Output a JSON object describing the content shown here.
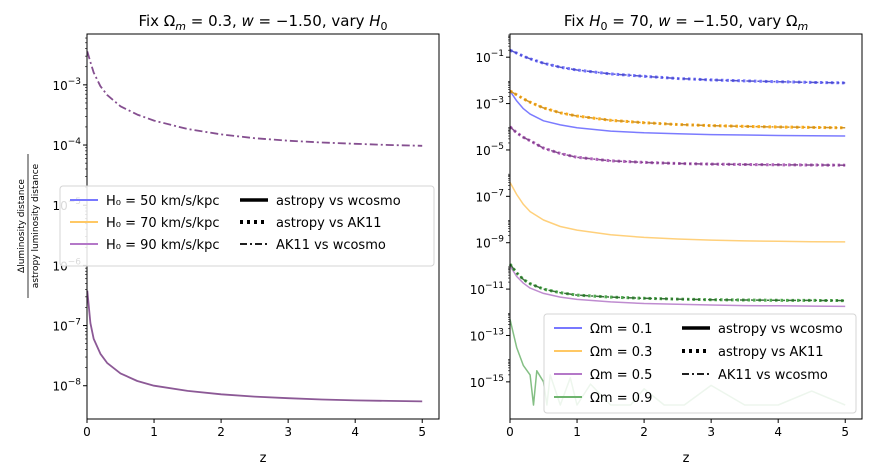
{
  "chart_data": [
    {
      "type": "line",
      "title": "Fix Ω_m = 0.3, w = −1.50, vary H_0",
      "xlabel": "z",
      "ylabel_num": "Δluminosity distance",
      "ylabel_den": "astropy luminosity distance",
      "xlim": [
        0,
        5.25
      ],
      "ylim": [
        2.8e-09,
        0.007
      ],
      "yscale": "log",
      "xticks": [
        "0",
        "1",
        "2",
        "3",
        "4",
        "5"
      ],
      "yticks": [
        {
          "exp": "-8",
          "v": 1e-08
        },
        {
          "exp": "-7",
          "v": 1e-07
        },
        {
          "exp": "-6",
          "v": 1e-06
        },
        {
          "exp": "-5",
          "v": 1e-05
        },
        {
          "exp": "-4",
          "v": 0.0001
        },
        {
          "exp": "-3",
          "v": 0.001
        }
      ],
      "legend_position": "center-left",
      "legend_colors": [
        {
          "label": "H₀ = 50 km/s/kpc",
          "color": "#7878ff"
        },
        {
          "label": "H₀ = 70 km/s/kpc",
          "color": "#ffc864"
        },
        {
          "label": "H₀ = 90 km/s/kpc",
          "color": "#b478c8"
        }
      ],
      "legend_styles": [
        {
          "label": "astropy vs wcosmo",
          "style": "solid"
        },
        {
          "label": "astropy vs AK11",
          "style": "dotted"
        },
        {
          "label": "AK11 vs wcosmo",
          "style": "dashdot"
        }
      ],
      "x": [
        0.005,
        0.05,
        0.1,
        0.2,
        0.3,
        0.5,
        0.75,
        1,
        1.5,
        2,
        2.5,
        3,
        3.5,
        4,
        4.5,
        5
      ],
      "series": [
        {
          "color": "#783c84",
          "style": "solid",
          "width": 1.8,
          "values": [
            3.8e-07,
            1.1e-07,
            6e-08,
            3.4e-08,
            2.4e-08,
            1.6e-08,
            1.2e-08,
            1e-08,
            8.2e-09,
            7.2e-09,
            6.6e-09,
            6.2e-09,
            5.9e-09,
            5.7e-09,
            5.6e-09,
            5.5e-09
          ]
        },
        {
          "color": "#783c84",
          "style": "dashdot",
          "width": 1.8,
          "values": [
            0.0036,
            0.0024,
            0.0016,
            0.00095,
            0.00068,
            0.00044,
            0.00032,
            0.000255,
            0.000185,
            0.00015,
            0.00013,
            0.000118,
            0.00011,
            0.000105,
            0.0001,
            9.7e-05
          ]
        }
      ]
    },
    {
      "type": "line",
      "title": "Fix H_0 = 70, w = −1.50, vary Ω_m",
      "xlabel": "z",
      "xlim": [
        0,
        5.25
      ],
      "ylim": [
        2.5e-17,
        1
      ],
      "yscale": "log",
      "xticks": [
        "0",
        "1",
        "2",
        "3",
        "4",
        "5"
      ],
      "yticks": [
        {
          "exp": "-15",
          "v": 1e-15
        },
        {
          "exp": "-13",
          "v": 1e-13
        },
        {
          "exp": "-11",
          "v": 1e-11
        },
        {
          "exp": "-9",
          "v": 1e-09
        },
        {
          "exp": "-7",
          "v": 1e-07
        },
        {
          "exp": "-5",
          "v": 1e-05
        },
        {
          "exp": "-3",
          "v": 0.001
        },
        {
          "exp": "-1",
          "v": 0.1
        }
      ],
      "legend_position": "lower-right",
      "legend_colors": [
        {
          "label": "Ωm = 0.1",
          "color": "#7878ff"
        },
        {
          "label": "Ωm = 0.3",
          "color": "#ffc864"
        },
        {
          "label": "Ωm = 0.5",
          "color": "#b478c8"
        },
        {
          "label": "Ωm = 0.9",
          "color": "#6eb46e"
        }
      ],
      "legend_styles": [
        {
          "label": "astropy vs wcosmo",
          "style": "solid"
        },
        {
          "label": "astropy vs AK11",
          "style": "dotted"
        },
        {
          "label": "AK11 vs wcosmo",
          "style": "dashdot"
        }
      ],
      "x": [
        0,
        0.1,
        0.2,
        0.3,
        0.5,
        0.75,
        1,
        1.5,
        2,
        2.5,
        3,
        3.5,
        4,
        4.5,
        5
      ],
      "series": [
        {
          "color": "#6464ff",
          "style": "dotted",
          "width": 3,
          "values": [
            0.2,
            0.15,
            0.11,
            0.085,
            0.055,
            0.037,
            0.028,
            0.019,
            0.015,
            0.012,
            0.0105,
            0.0095,
            0.0088,
            0.0082,
            0.0078
          ]
        },
        {
          "color": "#4646c8",
          "style": "dashdot",
          "width": 1.5,
          "values": [
            0.2,
            0.15,
            0.11,
            0.085,
            0.055,
            0.037,
            0.028,
            0.019,
            0.015,
            0.012,
            0.0105,
            0.0095,
            0.0088,
            0.0082,
            0.0078
          ]
        },
        {
          "color": "#6464ff",
          "style": "solid",
          "width": 1.5,
          "values": [
            0.0035,
            0.0013,
            0.0006,
            0.00035,
            0.00018,
            0.00012,
            9e-05,
            6.5e-05,
            5.5e-05,
            5e-05,
            4.6e-05,
            4.4e-05,
            4.2e-05,
            4.1e-05,
            4e-05
          ]
        },
        {
          "color": "#ffa500",
          "style": "dotted",
          "width": 3,
          "values": [
            0.0035,
            0.0024,
            0.0016,
            0.00115,
            0.00065,
            0.0004,
            0.00029,
            0.00019,
            0.00015,
            0.000125,
            0.000112,
            0.000104,
            9.8e-05,
            9.4e-05,
            9e-05
          ]
        },
        {
          "color": "#c88c1e",
          "style": "dashdot",
          "width": 1.5,
          "values": [
            0.0035,
            0.0024,
            0.0016,
            0.00115,
            0.00065,
            0.0004,
            0.00029,
            0.00019,
            0.00015,
            0.000125,
            0.000112,
            0.000104,
            9.8e-05,
            9.4e-05,
            9e-05
          ]
        },
        {
          "color": "#ffc864",
          "style": "solid",
          "width": 1.5,
          "values": [
            4e-07,
            1.2e-07,
            4.5e-08,
            2.2e-08,
            9.5e-09,
            5e-09,
            3.5e-09,
            2.2e-09,
            1.7e-09,
            1.45e-09,
            1.3e-09,
            1.2e-09,
            1.15e-09,
            1.1e-09,
            1.08e-09
          ]
        },
        {
          "color": "#aa50b4",
          "style": "dotted",
          "width": 3,
          "values": [
            0.0001,
            5.5e-05,
            3.5e-05,
            2.5e-05,
            1.2e-05,
            7e-06,
            4.8e-06,
            3.4e-06,
            2.9e-06,
            2.6e-06,
            2.45e-06,
            2.35e-06,
            2.3e-06,
            2.25e-06,
            2.2e-06
          ]
        },
        {
          "color": "#783c84",
          "style": "dashdot",
          "width": 1.5,
          "values": [
            0.0001,
            5.5e-05,
            3.5e-05,
            2.5e-05,
            1.2e-05,
            7e-06,
            4.8e-06,
            3.4e-06,
            2.9e-06,
            2.6e-06,
            2.45e-06,
            2.35e-06,
            2.3e-06,
            2.25e-06,
            2.2e-06
          ]
        },
        {
          "color": "#b478c8",
          "style": "solid",
          "width": 1.5,
          "values": [
            1e-10,
            3.5e-11,
            1.8e-11,
            1.1e-11,
            6.5e-12,
            4.5e-12,
            3.6e-12,
            2.8e-12,
            2.4e-12,
            2.2e-12,
            2.05e-12,
            1.95e-12,
            1.9e-12,
            1.85e-12,
            1.8e-12
          ]
        },
        {
          "color": "#3ca03c",
          "style": "dotted",
          "width": 3,
          "values": [
            1.2e-10,
            5e-11,
            2.6e-11,
            1.7e-11,
            1e-11,
            7e-12,
            5.5e-12,
            4.5e-12,
            4e-12,
            3.7e-12,
            3.5e-12,
            3.4e-12,
            3.3e-12,
            3.25e-12,
            3.2e-12
          ]
        },
        {
          "color": "#286428",
          "style": "dashdot",
          "width": 1.5,
          "values": [
            1.2e-10,
            5e-11,
            2.6e-11,
            1.7e-11,
            1e-11,
            7e-12,
            5.5e-12,
            4.5e-12,
            4e-12,
            3.7e-12,
            3.5e-12,
            3.4e-12,
            3.3e-12,
            3.25e-12,
            3.2e-12
          ]
        },
        {
          "color": "#6eb46e",
          "style": "solid",
          "width": 1.5,
          "x": [
            0,
            0.1,
            0.2,
            0.3,
            0.35,
            0.4,
            0.5,
            0.55,
            0.6,
            0.75,
            0.9,
            1.0,
            1.2,
            1.5,
            1.8,
            2.0,
            2.3,
            2.6,
            3.0,
            3.5,
            4.0,
            4.5,
            5.0
          ],
          "values": [
            5e-13,
            3e-14,
            5e-15,
            2e-15,
            1e-16,
            3e-15,
            1e-15,
            1e-16,
            2e-15,
            1e-16,
            1.5e-15,
            1e-16,
            8e-16,
            1e-16,
            1e-16,
            5e-16,
            1e-16,
            1e-16,
            7e-16,
            1e-16,
            1e-16,
            4e-16,
            1e-16
          ]
        }
      ]
    }
  ]
}
